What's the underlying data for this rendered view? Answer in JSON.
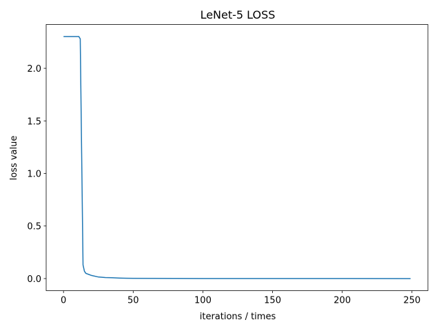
{
  "chart_data": {
    "type": "line",
    "title": "LeNet-5 LOSS",
    "x_label": "iterations / times",
    "y_label": "loss value",
    "x": [
      0,
      5,
      10,
      11,
      12,
      13,
      14,
      15,
      16,
      18,
      20,
      25,
      30,
      35,
      40,
      45,
      50,
      100,
      150,
      200,
      249
    ],
    "series": [
      {
        "color": "#1f77b4",
        "values": [
          2.302,
          2.302,
          2.302,
          2.302,
          2.28,
          1.2,
          0.13,
          0.07,
          0.05,
          0.04,
          0.03,
          0.015,
          0.01,
          0.008,
          0.005,
          0.003,
          0.002,
          0.001,
          0.0005,
          0.0003,
          0.0002
        ]
      }
    ],
    "xlim": [
      -12.45,
      261.45
    ],
    "ylim": [
      -0.115,
      2.417
    ],
    "xticks": [
      0,
      50,
      100,
      150,
      200,
      250
    ],
    "yticks": [
      {
        "value": 0,
        "label": "0.0"
      },
      {
        "value": 0.5,
        "label": "0.5"
      },
      {
        "value": 1,
        "label": "1.0"
      },
      {
        "value": 1.5,
        "label": "1.5"
      },
      {
        "value": 2,
        "label": "2.0"
      }
    ],
    "grid": false
  }
}
